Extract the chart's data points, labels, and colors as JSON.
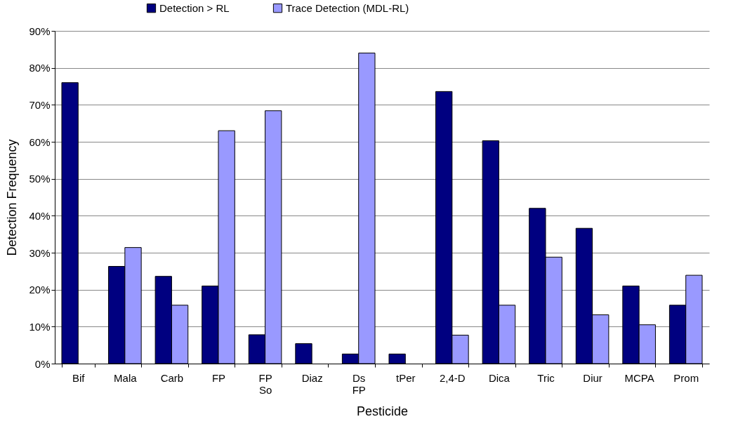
{
  "chart_data": {
    "type": "bar",
    "xlabel": "Pesticide",
    "ylabel": "Detection Frequency",
    "categories": [
      "Bif",
      "Mala",
      "Carb",
      "FP",
      "FP So",
      "Diaz",
      "Ds FP",
      "tPer",
      "2,4-D",
      "Dica",
      "Tric",
      "Diur",
      "MCPA",
      "Prom"
    ],
    "series": [
      {
        "name": "Detection > RL",
        "color": "#000080",
        "values": [
          76.0,
          26.3,
          23.6,
          21.0,
          7.8,
          5.4,
          2.6,
          2.6,
          73.6,
          60.3,
          42.0,
          36.6,
          21.0,
          15.8
        ]
      },
      {
        "name": "Trace Detection (MDL-RL)",
        "color": "#9999ff",
        "values": [
          null,
          31.4,
          15.8,
          63.0,
          68.4,
          null,
          84.0,
          null,
          7.7,
          15.8,
          28.8,
          13.2,
          10.5,
          23.9
        ]
      }
    ],
    "ylim": [
      0,
      90
    ],
    "yticks": [
      {
        "value": 0,
        "label": "0%"
      },
      {
        "value": 10,
        "label": "10%"
      },
      {
        "value": 20,
        "label": "20%"
      },
      {
        "value": 30,
        "label": "30%"
      },
      {
        "value": 40,
        "label": "40%"
      },
      {
        "value": 50,
        "label": "50%"
      },
      {
        "value": 60,
        "label": "60%"
      },
      {
        "value": 70,
        "label": "70%"
      },
      {
        "value": 80,
        "label": "80%"
      },
      {
        "value": 90,
        "label": "90%"
      }
    ],
    "grid": "y",
    "legend": "top"
  }
}
